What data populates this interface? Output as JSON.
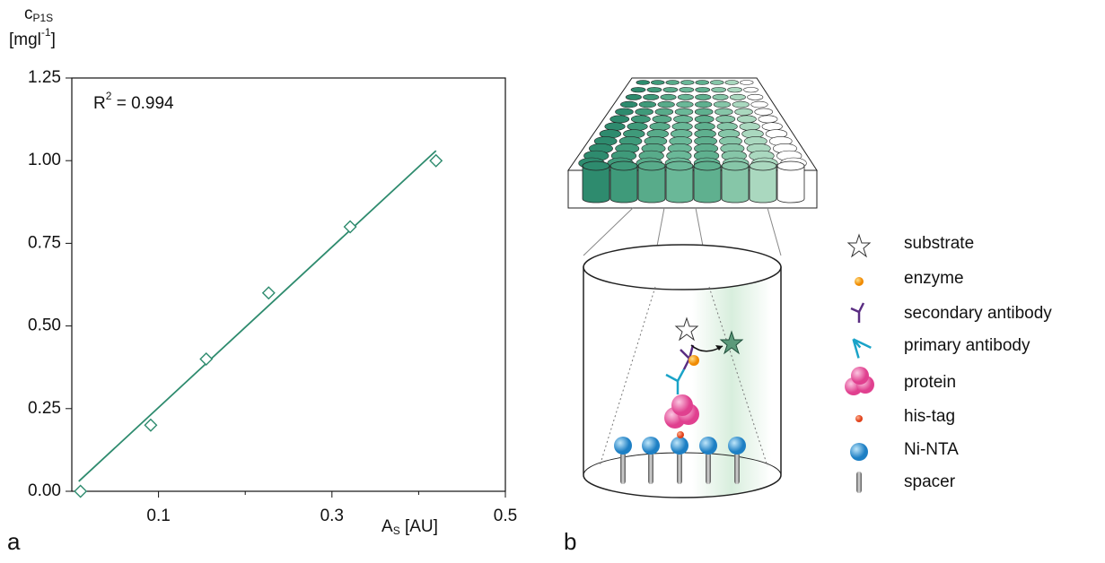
{
  "chart_data": {
    "type": "scatter",
    "y_label": {
      "base": "c",
      "sub": "P1S",
      "unit_open": "[mgl",
      "unit_sup": "-1",
      "unit_close": "]"
    },
    "x_label": {
      "base": "A",
      "sub": "S",
      "unit": "[AU]"
    },
    "annotation": {
      "base": "R",
      "sup": "2",
      "text": "= 0.994"
    },
    "panel_label": "a",
    "xlim": [
      0,
      0.5
    ],
    "ylim": [
      0,
      1.25
    ],
    "xticks": [
      0.1,
      0.3,
      0.5
    ],
    "x_minor_ticks": [
      0.2,
      0.4
    ],
    "yticks": [
      {
        "value": 0,
        "label": "0.00"
      },
      0.25,
      {
        "value": 0.5,
        "label": "0.50"
      },
      0.75,
      {
        "value": 1,
        "label": "1.00"
      },
      1.25
    ],
    "series": [
      {
        "color": "#2e8b6e",
        "marker": "diamond",
        "x": [
          0.01,
          0.091,
          0.155,
          0.227,
          0.321,
          0.42
        ],
        "values": [
          0,
          0.2,
          0.4,
          0.6,
          0.8,
          1.0
        ]
      }
    ],
    "fit_line": {
      "color": "#2e8b6e",
      "x": [
        0.008,
        0.42
      ],
      "values": [
        0.03,
        1.03
      ]
    }
  },
  "diagram": {
    "panel_label": "b",
    "legend": [
      "substrate",
      "enzyme",
      "secondary antibody",
      "primary antibody",
      "protein",
      "his-tag",
      "Ni-NTA",
      "spacer"
    ]
  }
}
